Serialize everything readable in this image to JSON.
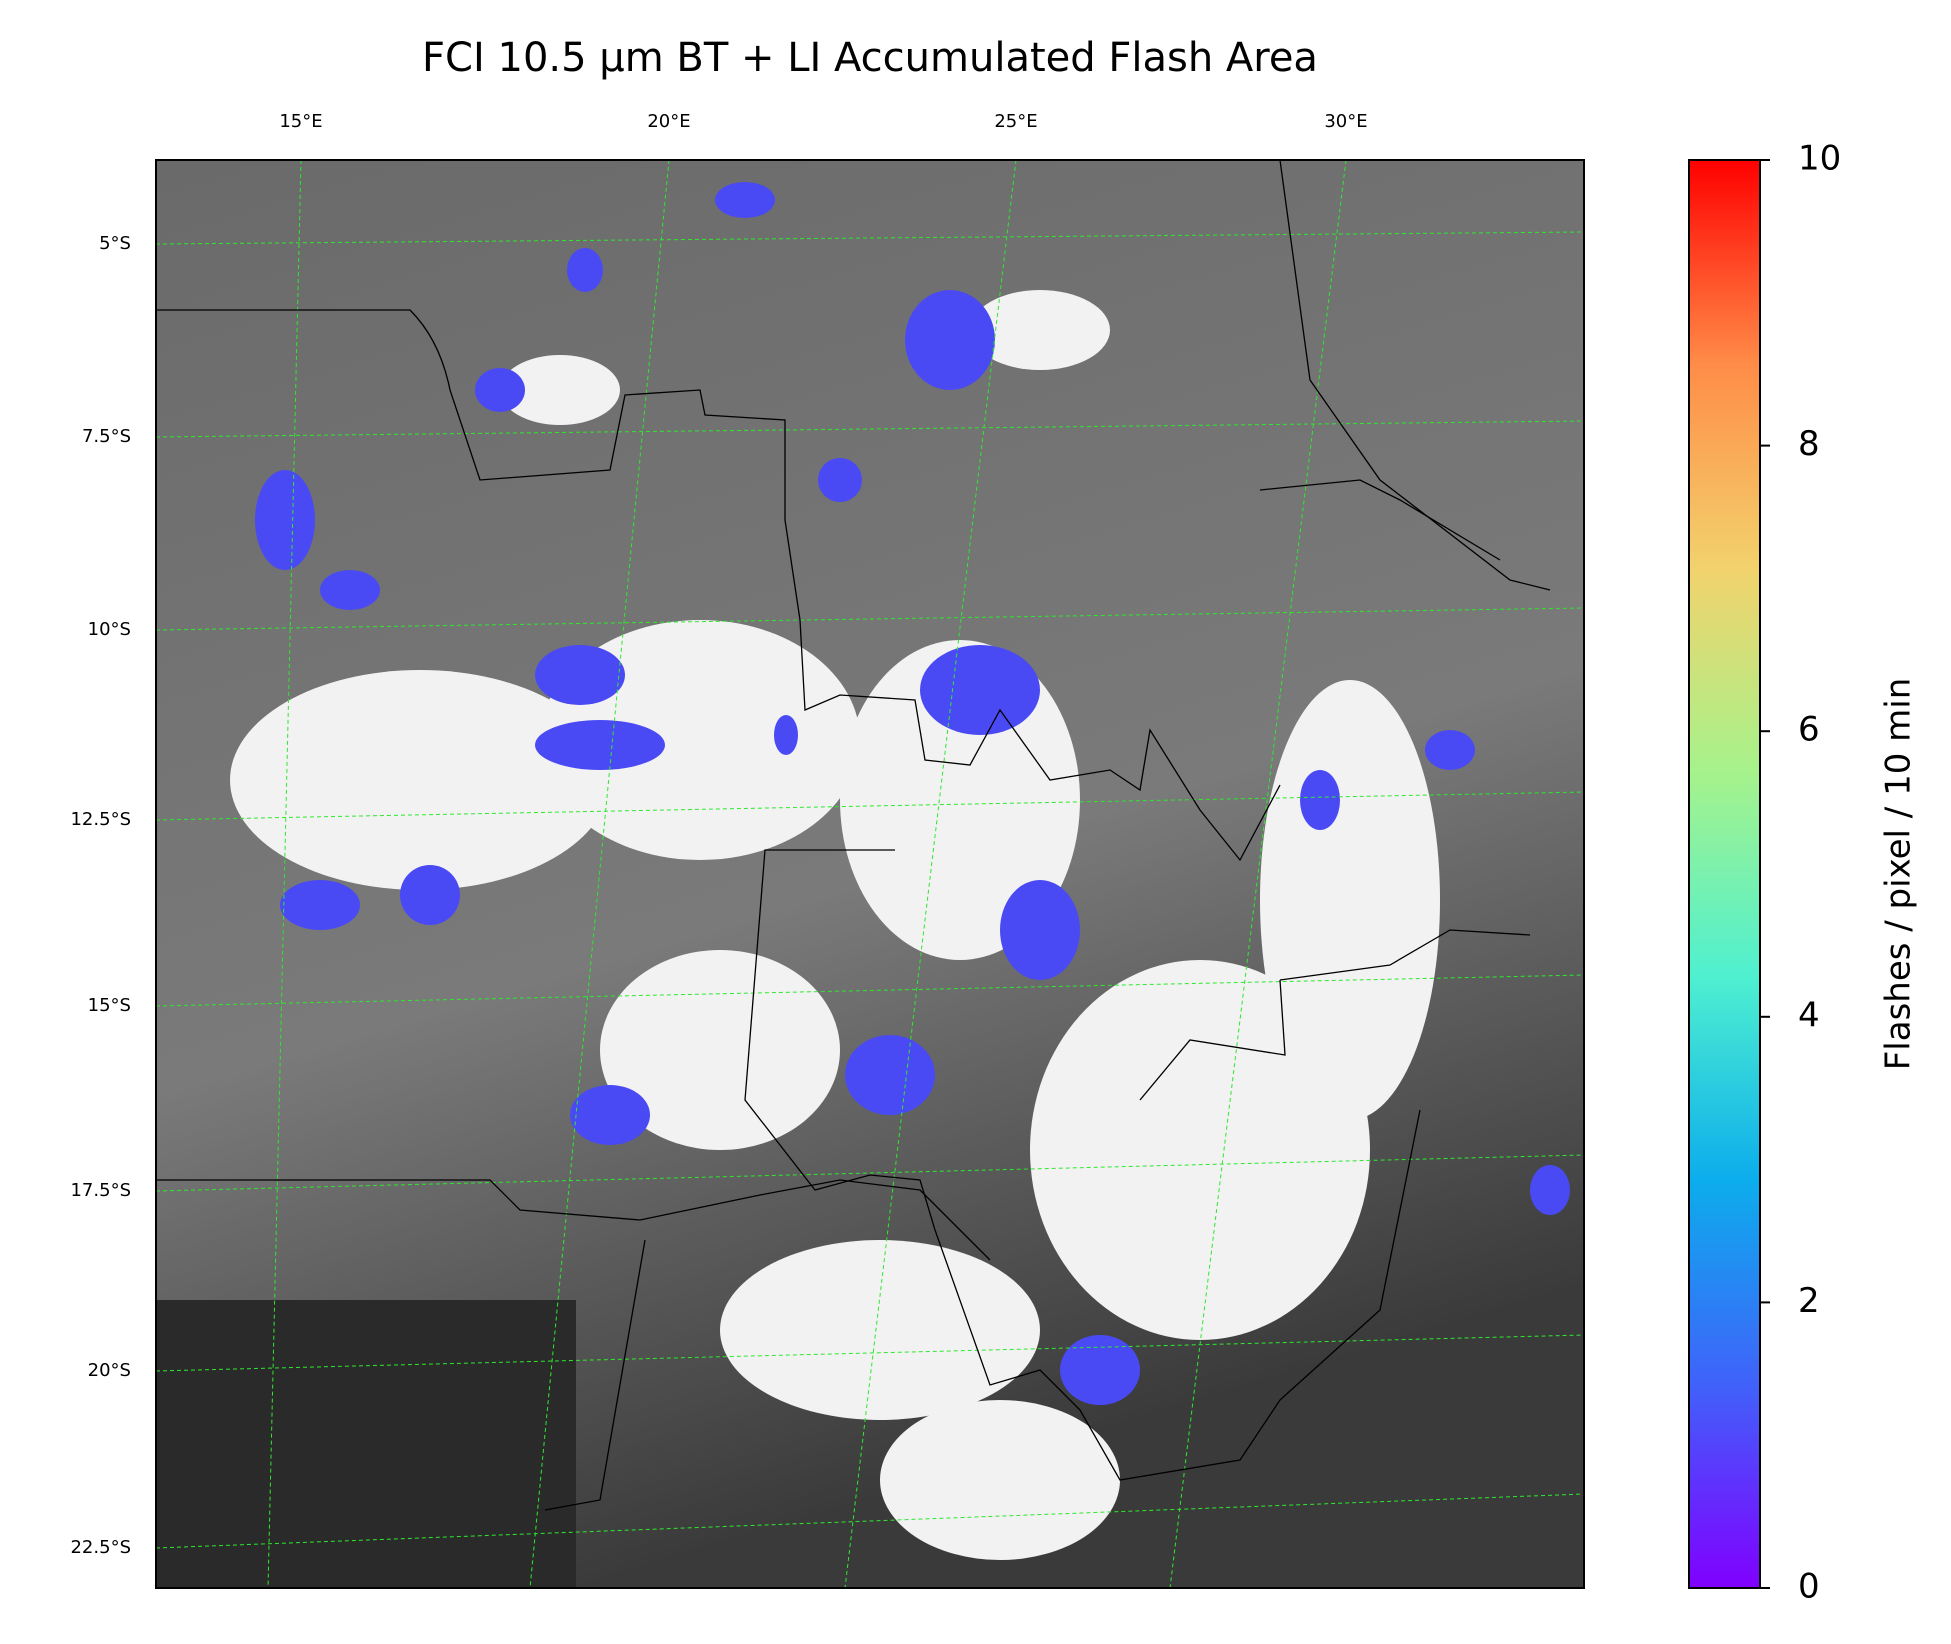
{
  "title": "FCI 10.5 µm BT + LI Accumulated Flash Area",
  "map": {
    "lon_labels": [
      "15°E",
      "20°E",
      "25°E",
      "30°E"
    ],
    "lat_labels": [
      "5°S",
      "7.5°S",
      "10°S",
      "12.5°S",
      "15°S",
      "17.5°S",
      "20°S",
      "22.5°S"
    ]
  },
  "colorbar": {
    "label": "Flashes / pixel / 10 min",
    "lim": [
      0,
      10
    ],
    "ticks": [
      0,
      2,
      4,
      6,
      8,
      10
    ],
    "colors": [
      "#8000ff",
      "#4062fa",
      "#0cadec",
      "#4ff0d0",
      "#a6f28b",
      "#f2d26c",
      "#ff8c48",
      "#ff0000"
    ]
  }
}
